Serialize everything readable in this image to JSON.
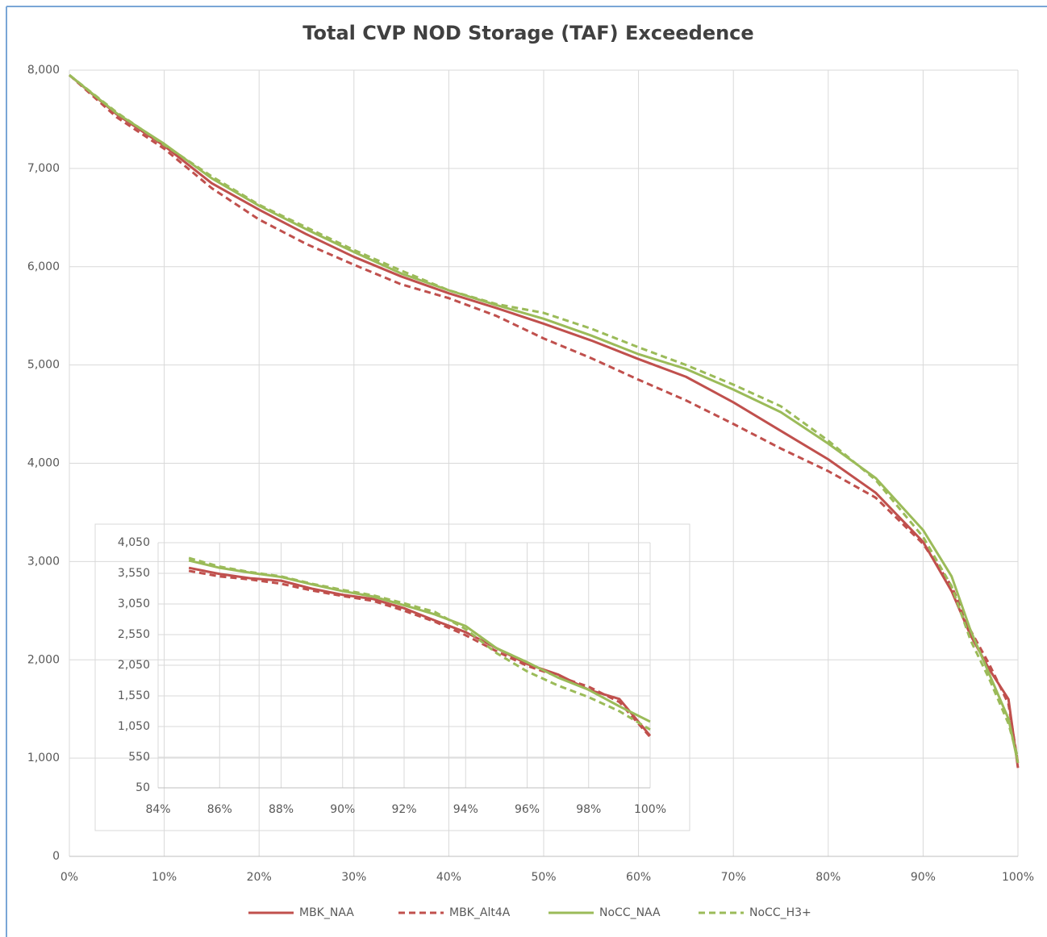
{
  "chart_data": [
    {
      "type": "line",
      "title": "Total CVP NOD Storage (TAF) Exceedence",
      "x": [
        0,
        5,
        10,
        15,
        20,
        25,
        30,
        35,
        40,
        45,
        50,
        55,
        60,
        65,
        70,
        75,
        80,
        85,
        90,
        93,
        95,
        97,
        99,
        100
      ],
      "series": [
        {
          "name": "MBK_NAA",
          "color": "#c0504d",
          "dash": false,
          "values": [
            7950,
            7550,
            7230,
            6850,
            6580,
            6330,
            6100,
            5900,
            5730,
            5580,
            5420,
            5250,
            5060,
            4880,
            4620,
            4330,
            4040,
            3700,
            3200,
            2700,
            2250,
            1900,
            1600,
            900
          ]
        },
        {
          "name": "MBK_Alt4A",
          "color": "#c0504d",
          "dash": true,
          "values": [
            7950,
            7520,
            7200,
            6800,
            6480,
            6230,
            6020,
            5820,
            5680,
            5500,
            5270,
            5070,
            4850,
            4640,
            4400,
            4150,
            3920,
            3650,
            3180,
            2750,
            2300,
            1950,
            1550,
            950
          ]
        },
        {
          "name": "NoCC_NAA",
          "color": "#9bbb59",
          "dash": false,
          "values": [
            7950,
            7560,
            7250,
            6900,
            6620,
            6380,
            6150,
            5930,
            5760,
            5610,
            5470,
            5300,
            5110,
            4960,
            4750,
            4520,
            4200,
            3850,
            3320,
            2850,
            2300,
            1850,
            1400,
            950
          ]
        },
        {
          "name": "NoCC_H3+",
          "color": "#9bbb59",
          "dash": true,
          "values": [
            7950,
            7570,
            7240,
            6920,
            6630,
            6400,
            6170,
            5960,
            5760,
            5620,
            5530,
            5370,
            5180,
            5000,
            4800,
            4580,
            4230,
            3830,
            3250,
            2750,
            2200,
            1800,
            1350,
            1000
          ]
        }
      ],
      "xlim": [
        0,
        100
      ],
      "xticks": [
        {
          "value": 0,
          "label": "0%"
        },
        {
          "value": 10,
          "label": "10%"
        },
        {
          "value": 20,
          "label": "20%"
        },
        {
          "value": 30,
          "label": "30%"
        },
        {
          "value": 40,
          "label": "40%"
        },
        {
          "value": 50,
          "label": "50%"
        },
        {
          "value": 60,
          "label": "60%"
        },
        {
          "value": 70,
          "label": "70%"
        },
        {
          "value": 80,
          "label": "80%"
        },
        {
          "value": 90,
          "label": "90%"
        },
        {
          "value": 100,
          "label": "100%"
        }
      ],
      "ylim": [
        0,
        8000
      ],
      "yticks": [
        0,
        {
          "value": 1000,
          "label": "1,000"
        },
        {
          "value": 2000,
          "label": "2,000"
        },
        {
          "value": 3000,
          "label": "3,000"
        },
        {
          "value": 4000,
          "label": "4,000"
        },
        {
          "value": 5000,
          "label": "5,000"
        },
        {
          "value": 6000,
          "label": "6,000"
        },
        {
          "value": 7000,
          "label": "7,000"
        },
        {
          "value": 8000,
          "label": "8,000"
        }
      ],
      "grid": true,
      "legend": "bottom"
    },
    {
      "type": "line",
      "x": [
        85,
        86,
        87,
        88,
        89,
        90,
        91,
        92,
        93,
        94,
        95,
        96,
        97,
        98,
        99,
        100
      ],
      "series": [
        {
          "color": "#c0504d",
          "dash": false,
          "values": [
            3640,
            3540,
            3470,
            3430,
            3300,
            3200,
            3130,
            2980,
            2780,
            2590,
            2330,
            2070,
            1900,
            1650,
            1500,
            900
          ]
        },
        {
          "color": "#c0504d",
          "dash": true,
          "values": [
            3590,
            3500,
            3450,
            3380,
            3270,
            3180,
            3100,
            2940,
            2760,
            2540,
            2280,
            2040,
            1870,
            1700,
            1450,
            880
          ]
        },
        {
          "color": "#9bbb59",
          "dash": false,
          "values": [
            3760,
            3640,
            3560,
            3490,
            3370,
            3260,
            3170,
            3030,
            2880,
            2690,
            2330,
            2100,
            1850,
            1650,
            1380,
            1130
          ]
        },
        {
          "color": "#9bbb59",
          "dash": true,
          "values": [
            3800,
            3660,
            3570,
            3500,
            3380,
            3280,
            3190,
            3060,
            2920,
            2640,
            2250,
            1950,
            1720,
            1530,
            1300,
            1000
          ]
        }
      ],
      "xlim": [
        84,
        100
      ],
      "xticks": [
        {
          "value": 84,
          "label": "84%"
        },
        {
          "value": 86,
          "label": "86%"
        },
        {
          "value": 88,
          "label": "88%"
        },
        {
          "value": 90,
          "label": "90%"
        },
        {
          "value": 92,
          "label": "92%"
        },
        {
          "value": 94,
          "label": "94%"
        },
        {
          "value": 96,
          "label": "96%"
        },
        {
          "value": 98,
          "label": "98%"
        },
        {
          "value": 100,
          "label": "100%"
        }
      ],
      "ylim": [
        50,
        4050
      ],
      "yticks": [
        50,
        550,
        {
          "value": 1050,
          "label": "1,050"
        },
        {
          "value": 1550,
          "label": "1,550"
        },
        {
          "value": 2050,
          "label": "2,050"
        },
        {
          "value": 2550,
          "label": "2,550"
        },
        {
          "value": 3050,
          "label": "3,050"
        },
        {
          "value": 3550,
          "label": "3,550"
        },
        {
          "value": 4050,
          "label": "4,050"
        }
      ],
      "grid": true
    }
  ]
}
